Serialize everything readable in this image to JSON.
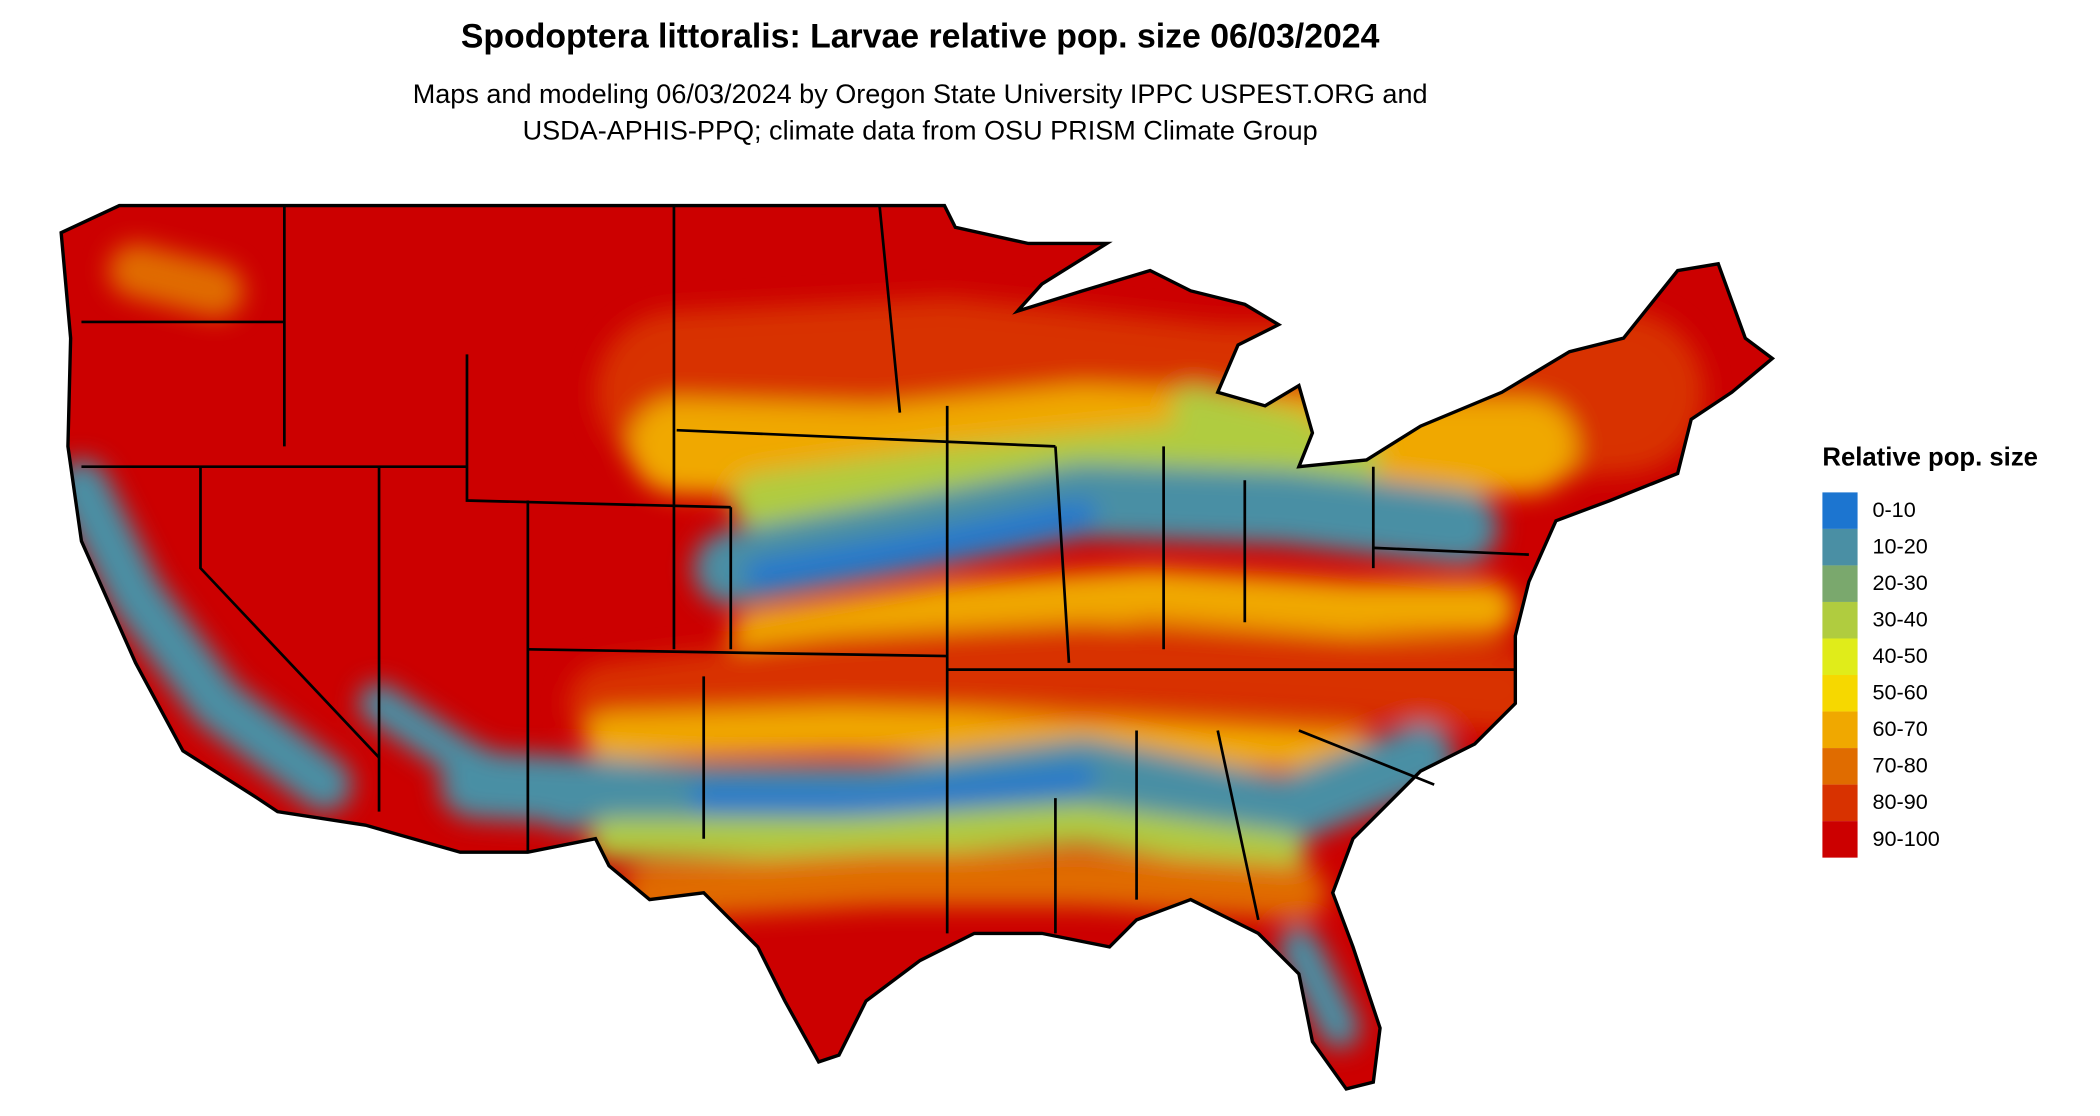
{
  "header": {
    "title": "Spodoptera littoralis: Larvae relative pop. size 06/03/2024",
    "subtitle": [
      "Maps and modeling 06/03/2024 by Oregon State University IPPC USPEST.ORG and",
      "USDA-APHIS-PPQ; climate data from OSU PRISM Climate Group"
    ]
  },
  "legend": {
    "title": "Relative pop. size",
    "items": [
      {
        "label": "0-10",
        "color": "#1c75d0"
      },
      {
        "label": "10-20",
        "color": "#4a8fa4"
      },
      {
        "label": "20-30",
        "color": "#7aa86d"
      },
      {
        "label": "30-40",
        "color": "#b0cc3f"
      },
      {
        "label": "40-50",
        "color": "#e0ec1a"
      },
      {
        "label": "50-60",
        "color": "#f6d800"
      },
      {
        "label": "60-70",
        "color": "#f0a800"
      },
      {
        "label": "70-80",
        "color": "#e06c00"
      },
      {
        "label": "80-90",
        "color": "#d83200"
      },
      {
        "label": "90-100",
        "color": "#cc0000"
      }
    ]
  }
}
